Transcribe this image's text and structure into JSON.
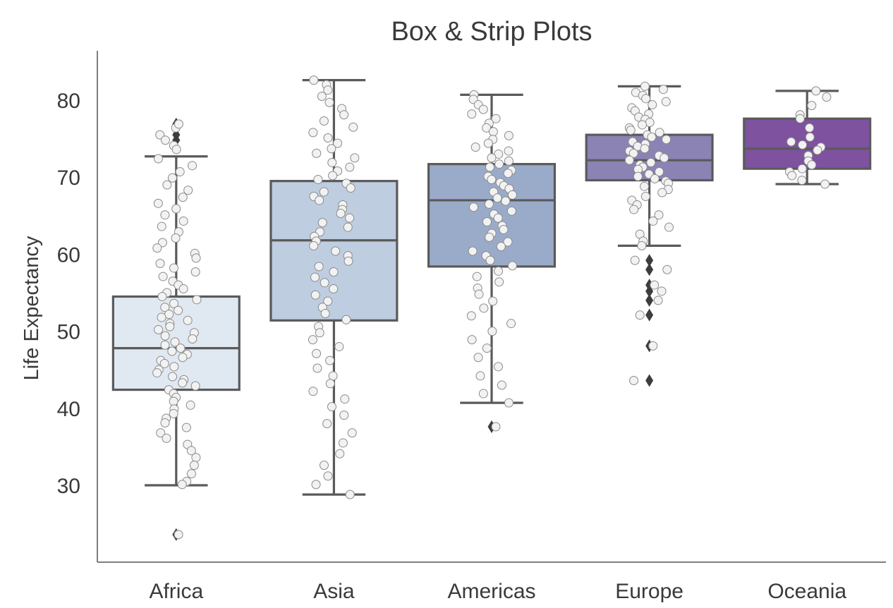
{
  "chart_data": {
    "type": "box",
    "title": "Box & Strip Plots",
    "xlabel": "",
    "ylabel": "Life Expectancy",
    "ylim": [
      20,
      86
    ],
    "yticks": [
      30,
      40,
      50,
      60,
      70,
      80
    ],
    "grid": false,
    "legend": "none",
    "categories": [
      "Africa",
      "Asia",
      "Americas",
      "Europe",
      "Oceania"
    ],
    "boxes": [
      {
        "category": "Africa",
        "color": "#e0e8f2",
        "whisker_low": 30.0,
        "q1": 42.4,
        "median": 47.8,
        "q3": 54.5,
        "whisker_high": 72.7,
        "outliers": [
          23.6,
          74.8,
          75.5,
          76.4,
          76.9
        ]
      },
      {
        "category": "Asia",
        "color": "#bfcde0",
        "whisker_low": 28.8,
        "q1": 51.4,
        "median": 61.8,
        "q3": 69.5,
        "whisker_high": 82.6,
        "outliers": []
      },
      {
        "category": "Americas",
        "color": "#9aabca",
        "whisker_low": 40.7,
        "q1": 58.4,
        "median": 67.0,
        "q3": 71.7,
        "whisker_high": 80.7,
        "outliers": [
          37.6
        ]
      },
      {
        "category": "Europe",
        "color": "#8a83b4",
        "whisker_low": 61.1,
        "q1": 69.6,
        "median": 72.2,
        "q3": 75.5,
        "whisker_high": 81.8,
        "outliers": [
          43.6,
          48.1,
          52.1,
          54.0,
          55.2,
          56.0,
          58.0,
          59.2
        ]
      },
      {
        "category": "Oceania",
        "color": "#7e529e",
        "whisker_low": 69.1,
        "q1": 71.1,
        "median": 73.7,
        "q3": 77.6,
        "whisker_high": 81.2,
        "outliers": []
      }
    ],
    "strip_points": {
      "Africa": [
        76.4,
        76.9,
        75.5,
        74.8,
        74.1,
        73.6,
        72.4,
        71.5,
        70.7,
        69.9,
        69.0,
        68.3,
        67.4,
        66.6,
        65.9,
        65.1,
        64.3,
        63.6,
        62.9,
        62.1,
        61.5,
        60.8,
        60.1,
        59.5,
        58.8,
        58.2,
        57.7,
        57.1,
        56.5,
        56.0,
        55.5,
        55.0,
        54.5,
        54.1,
        53.6,
        53.1,
        52.7,
        52.2,
        51.8,
        51.4,
        51.0,
        50.6,
        50.2,
        49.8,
        49.4,
        49.0,
        48.6,
        48.2,
        47.8,
        47.4,
        47.0,
        46.6,
        46.2,
        45.8,
        45.4,
        45.0,
        44.6,
        44.1,
        43.7,
        43.3,
        42.9,
        42.4,
        41.9,
        41.4,
        40.9,
        40.4,
        39.9,
        39.3,
        38.7,
        38.1,
        37.5,
        36.8,
        36.1,
        35.3,
        34.5,
        33.6,
        32.6,
        31.5,
        30.5,
        30.1,
        23.6
      ],
      "Asia": [
        82.6,
        82.0,
        81.3,
        80.5,
        79.7,
        78.9,
        78.1,
        77.3,
        76.5,
        75.8,
        75.1,
        74.4,
        73.7,
        73.1,
        72.5,
        71.9,
        71.3,
        70.8,
        70.2,
        69.7,
        69.2,
        68.6,
        68.1,
        67.5,
        67.0,
        66.4,
        65.8,
        65.3,
        64.7,
        64.1,
        63.5,
        62.9,
        62.3,
        61.7,
        61.1,
        60.4,
        59.8,
        59.1,
        58.4,
        57.7,
        57.0,
        56.3,
        55.5,
        54.7,
        53.9,
        53.1,
        52.3,
        51.5,
        50.6,
        49.8,
        48.9,
        48.0,
        47.1,
        46.2,
        45.2,
        44.2,
        43.2,
        42.2,
        41.2,
        40.2,
        39.1,
        38.0,
        36.8,
        35.5,
        34.1,
        32.6,
        31.2,
        30.1,
        28.8
      ],
      "Americas": [
        80.7,
        80.1,
        79.4,
        78.8,
        78.2,
        77.6,
        77.0,
        76.4,
        75.9,
        75.4,
        74.9,
        74.4,
        73.9,
        73.4,
        73.0,
        72.5,
        72.1,
        71.7,
        71.3,
        70.9,
        70.5,
        70.1,
        69.7,
        69.3,
        68.9,
        68.5,
        68.1,
        67.7,
        67.3,
        66.9,
        66.5,
        66.1,
        65.6,
        65.2,
        64.7,
        64.2,
        63.7,
        63.2,
        62.7,
        62.2,
        61.6,
        61.0,
        60.4,
        59.8,
        59.2,
        58.5,
        57.8,
        57.1,
        56.4,
        55.6,
        54.8,
        53.9,
        53.0,
        52.0,
        51.0,
        50.0,
        48.9,
        47.8,
        46.6,
        45.4,
        44.2,
        43.0,
        41.9,
        40.7,
        37.6
      ],
      "Europe": [
        81.8,
        81.4,
        81.0,
        80.6,
        80.2,
        79.8,
        79.4,
        79.0,
        78.6,
        78.2,
        77.8,
        77.5,
        77.1,
        76.8,
        76.4,
        76.1,
        75.8,
        75.5,
        75.2,
        74.9,
        74.6,
        74.3,
        74.0,
        73.7,
        73.4,
        73.1,
        72.8,
        72.5,
        72.2,
        71.9,
        71.6,
        71.3,
        71.0,
        70.7,
        70.4,
        70.1,
        69.8,
        69.5,
        69.2,
        68.8,
        68.4,
        68.0,
        67.5,
        67.0,
        66.4,
        65.8,
        65.1,
        64.3,
        63.5,
        62.6,
        61.7,
        61.1,
        59.2,
        58.0,
        56.0,
        55.2,
        54.0,
        52.1,
        48.1,
        43.6
      ],
      "Oceania": [
        81.2,
        80.4,
        79.3,
        78.1,
        77.6,
        76.4,
        75.2,
        74.6,
        74.2,
        73.9,
        73.5,
        72.8,
        72.1,
        71.6,
        71.1,
        70.7,
        70.2,
        69.6,
        69.1
      ]
    }
  }
}
